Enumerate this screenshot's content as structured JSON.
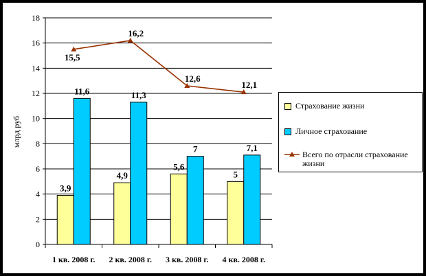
{
  "chart_data": {
    "type": "bar",
    "categories": [
      "1 кв. 2008 г.",
      "2 кв. 2008 г.",
      "3 кв. 2008 г.",
      "4 кв. 2008 г."
    ],
    "ylabel": "млрд руб",
    "ylim": [
      0,
      18
    ],
    "yticks": [
      "0",
      "2",
      "4",
      "6",
      "8",
      "10",
      "12",
      "14",
      "16",
      "18"
    ],
    "grid": true,
    "legend_position": "right",
    "series": [
      {
        "name": "Страхование жизни",
        "kind": "bar",
        "color": "#ffff99",
        "values": [
          3.9,
          4.9,
          5.6,
          5
        ],
        "labels": [
          "3,9",
          "4,9",
          "5,6",
          "5"
        ]
      },
      {
        "name": "Личное страхование",
        "kind": "bar",
        "color": "#00ccff",
        "values": [
          11.6,
          11.3,
          7,
          7.1
        ],
        "labels": [
          "11,6",
          "11,3",
          "7",
          "7,1"
        ]
      },
      {
        "name": "Всего по отрасли страхование жизни",
        "kind": "line",
        "color": "#993300",
        "values": [
          15.5,
          16.2,
          12.6,
          12.1
        ],
        "labels": [
          "15,5",
          "16,2",
          "12,6",
          "12,1"
        ]
      }
    ]
  }
}
